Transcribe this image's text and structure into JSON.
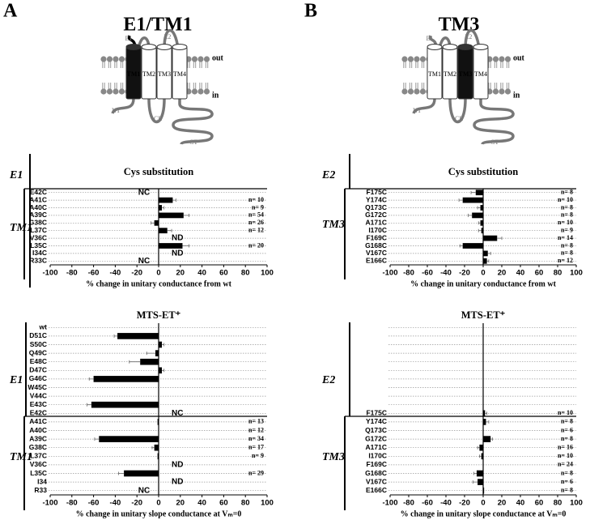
{
  "panels": [
    {
      "letter": "A",
      "heading": "E1/TM1",
      "highlight": "TM1",
      "diagram": {
        "loops": [
          "E1",
          "E2"
        ],
        "helices": [
          "TM1",
          "TM2",
          "TM3",
          "TM4"
        ],
        "sides": [
          "out",
          "in"
        ],
        "termini": [
          "NT",
          "CL",
          "CT"
        ]
      }
    },
    {
      "letter": "B",
      "heading": "TM3",
      "highlight": "TM3",
      "diagram": {
        "loops": [
          "E1",
          "E2"
        ],
        "helices": [
          "TM1",
          "TM2",
          "TM3",
          "TM4"
        ],
        "sides": [
          "out",
          "in"
        ],
        "termini": [
          "NT",
          "CL",
          "CT"
        ]
      }
    }
  ],
  "chart_data": [
    {
      "type": "bar",
      "orientation": "horizontal",
      "title": "Cys substitution",
      "xlabel": "% change in unitary conductance from wt",
      "groups": [
        "E1",
        "TM1"
      ],
      "color": "#000000",
      "categories": [
        "E42C",
        "A41C",
        "A40C",
        "A39C",
        "G38C",
        "L37C",
        "V36C",
        "L35C",
        "I34C",
        "R33C"
      ],
      "values": [
        null,
        13,
        3,
        23,
        -4,
        8,
        null,
        22,
        null,
        null
      ],
      "errors": [
        null,
        3,
        2,
        5,
        3,
        4,
        null,
        6,
        null,
        null
      ],
      "notes": [
        "NC",
        null,
        null,
        null,
        null,
        null,
        "ND",
        null,
        "ND",
        "NC"
      ],
      "n_labels": [
        null,
        "n= 10",
        "n=  9",
        "n= 54",
        "n= 26",
        "n= 12",
        null,
        "n= 20",
        null,
        null
      ],
      "xlim": [
        -100,
        100
      ],
      "xticks": [
        -100,
        -80,
        -60,
        -40,
        -20,
        0,
        20,
        40,
        60,
        80,
        100
      ]
    },
    {
      "type": "bar",
      "orientation": "horizontal",
      "title": "MTS-ET⁺",
      "xlabel": "% change in unitary slope conductance at Vₘ=0",
      "groups": [
        "E1",
        "TM1"
      ],
      "color": "#000000",
      "categories": [
        "wt",
        "D51C",
        "S50C",
        "Q49C",
        "E48C",
        "D47C",
        "G46C",
        "W45C",
        "V44C",
        "E43C",
        "E42C",
        "A41C",
        "A40C",
        "A39C",
        "G38C",
        "L37C",
        "V36C",
        "L35C",
        "I34",
        "R33"
      ],
      "values": [
        null,
        -38,
        3,
        -3,
        -17,
        3,
        -60,
        null,
        null,
        -62,
        null,
        -1,
        0,
        -55,
        -4,
        -1,
        null,
        -32,
        null,
        null
      ],
      "errors": [
        null,
        3,
        2,
        8,
        10,
        2,
        4,
        null,
        null,
        4,
        null,
        null,
        null,
        4,
        2,
        null,
        null,
        5,
        null,
        null
      ],
      "notes": [
        null,
        null,
        null,
        null,
        null,
        null,
        null,
        null,
        null,
        null,
        "NC",
        null,
        null,
        null,
        null,
        null,
        "ND",
        null,
        "ND",
        "NC"
      ],
      "n_labels": [
        null,
        null,
        null,
        null,
        null,
        null,
        null,
        null,
        null,
        null,
        null,
        "n= 13",
        "n= 12",
        "n= 34",
        "n= 17",
        "n=  9",
        null,
        "n= 29",
        null,
        null
      ],
      "xlim": [
        -100,
        100
      ],
      "xticks": [
        -100,
        -80,
        -60,
        -40,
        -20,
        0,
        20,
        40,
        60,
        80,
        100
      ]
    },
    {
      "type": "bar",
      "orientation": "horizontal",
      "title": "Cys substitution",
      "xlabel": "% change in unitary conductance from wt",
      "groups": [
        "E2",
        "TM3"
      ],
      "color": "#000000",
      "categories": [
        "F175C",
        "Y174C",
        "Q173C",
        "G172C",
        "A171C",
        "I170C",
        "F169C",
        "G168C",
        "V167C",
        "E166C"
      ],
      "values": [
        -8,
        -22,
        -3,
        -12,
        -3,
        -2,
        15,
        -22,
        5,
        4
      ],
      "errors": [
        5,
        4,
        3,
        4,
        2,
        3,
        5,
        3,
        3,
        2
      ],
      "notes": [
        null,
        null,
        null,
        null,
        null,
        null,
        null,
        null,
        null,
        null
      ],
      "n_labels": [
        "n=  8",
        "n= 10",
        "n=  8",
        "n=  8",
        "n= 10",
        "n=  9",
        "n= 14",
        "n=  8",
        "n=  8",
        "n= 12"
      ],
      "xlim": [
        -100,
        100
      ],
      "xticks": [
        -100,
        -80,
        -60,
        -40,
        -20,
        0,
        20,
        40,
        60,
        80,
        100
      ]
    },
    {
      "type": "bar",
      "orientation": "horizontal",
      "title": "MTS-ET⁺",
      "xlabel": "% change in unitary slope conductance at Vₘ=0",
      "groups": [
        "E2",
        "TM3"
      ],
      "color": "#000000",
      "categories": [
        null,
        null,
        null,
        null,
        null,
        null,
        null,
        null,
        null,
        null,
        "F175C",
        "Y174C",
        "Q173C",
        "G172C",
        "A171C",
        "I170C",
        "F169C",
        "G168C",
        "V167C",
        "E166C"
      ],
      "values": [
        null,
        null,
        null,
        null,
        null,
        null,
        null,
        null,
        null,
        null,
        2,
        3,
        0,
        8,
        -4,
        -2,
        0,
        -7,
        -6,
        1
      ],
      "errors": [
        null,
        null,
        null,
        null,
        null,
        null,
        null,
        null,
        null,
        null,
        2,
        3,
        null,
        2,
        2,
        2,
        null,
        3,
        5,
        null
      ],
      "notes": [
        null,
        null,
        null,
        null,
        null,
        null,
        null,
        null,
        null,
        null,
        null,
        null,
        null,
        null,
        null,
        null,
        null,
        null,
        null,
        null
      ],
      "n_labels": [
        null,
        null,
        null,
        null,
        null,
        null,
        null,
        null,
        null,
        null,
        "n= 10",
        "n=  8",
        "n=  6",
        "n=  8",
        "n= 16",
        "n= 10",
        "n= 24",
        "n=  8",
        "n=  6",
        "n=  8"
      ],
      "xlim": [
        -100,
        100
      ],
      "xticks": [
        -100,
        -80,
        -60,
        -40,
        -20,
        0,
        20,
        40,
        60,
        80,
        100
      ]
    }
  ]
}
